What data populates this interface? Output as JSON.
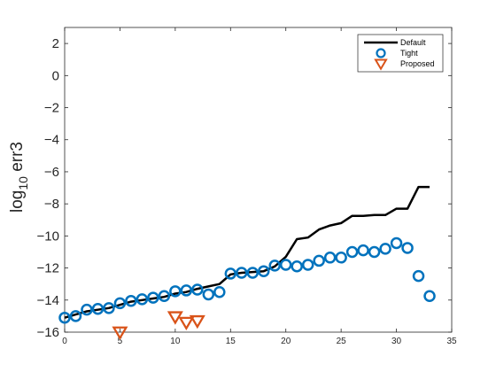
{
  "chart_data": {
    "type": "line",
    "title": "",
    "xlabel": "",
    "ylabel": {
      "base": "log",
      "sub": "10",
      "rest": " err3"
    },
    "xlim": [
      0,
      35
    ],
    "ylim": [
      -16,
      3
    ],
    "xticks": [
      0,
      5,
      10,
      15,
      20,
      25,
      30,
      35
    ],
    "yticks": [
      2,
      0,
      -2,
      -4,
      -6,
      -8,
      -10,
      -12,
      -14,
      -16
    ],
    "grid": false,
    "legend_position": "top-right",
    "colors": {
      "default": "#000000",
      "tight": "#0072BD",
      "proposed": "#D95319"
    },
    "series": [
      {
        "name": "Default",
        "kind": "line",
        "x": [
          0,
          1,
          2,
          3,
          4,
          5,
          6,
          7,
          8,
          9,
          10,
          11,
          12,
          13,
          14,
          15,
          16,
          17,
          18,
          19,
          20,
          21,
          22,
          23,
          24,
          25,
          26,
          27,
          28,
          29,
          30,
          31,
          32,
          33
        ],
        "y": [
          -15.1,
          -14.9,
          -14.7,
          -14.6,
          -14.5,
          -14.3,
          -14.1,
          -14.0,
          -13.9,
          -13.8,
          -13.6,
          -13.5,
          -13.3,
          -13.15,
          -13.0,
          -12.4,
          -12.3,
          -12.25,
          -12.2,
          -11.9,
          -11.3,
          -10.2,
          -10.1,
          -9.6,
          -9.35,
          -9.2,
          -8.75,
          -8.75,
          -8.7,
          -8.7,
          -8.3,
          -8.3,
          -6.95,
          -6.95
        ]
      },
      {
        "name": "Tight",
        "kind": "circle",
        "x": [
          0,
          1,
          2,
          3,
          4,
          5,
          6,
          7,
          8,
          9,
          10,
          11,
          12,
          13,
          14,
          15,
          16,
          17,
          18,
          19,
          20,
          21,
          22,
          23,
          24,
          25,
          26,
          27,
          28,
          29,
          30,
          31,
          32,
          33
        ],
        "y": [
          -15.1,
          -15.0,
          -14.6,
          -14.55,
          -14.5,
          -14.2,
          -14.05,
          -13.95,
          -13.85,
          -13.75,
          -13.45,
          -13.4,
          -13.35,
          -13.65,
          -13.5,
          -12.35,
          -12.3,
          -12.3,
          -12.2,
          -11.85,
          -11.8,
          -11.9,
          -11.8,
          -11.55,
          -11.35,
          -11.35,
          -11.0,
          -10.9,
          -11.0,
          -10.8,
          -10.45,
          -10.75,
          -12.5,
          -13.75
        ]
      },
      {
        "name": "Proposed",
        "kind": "triangle",
        "x": [
          5,
          10,
          11,
          12
        ],
        "y": [
          -16.0,
          -15.05,
          -15.4,
          -15.3
        ]
      }
    ]
  }
}
